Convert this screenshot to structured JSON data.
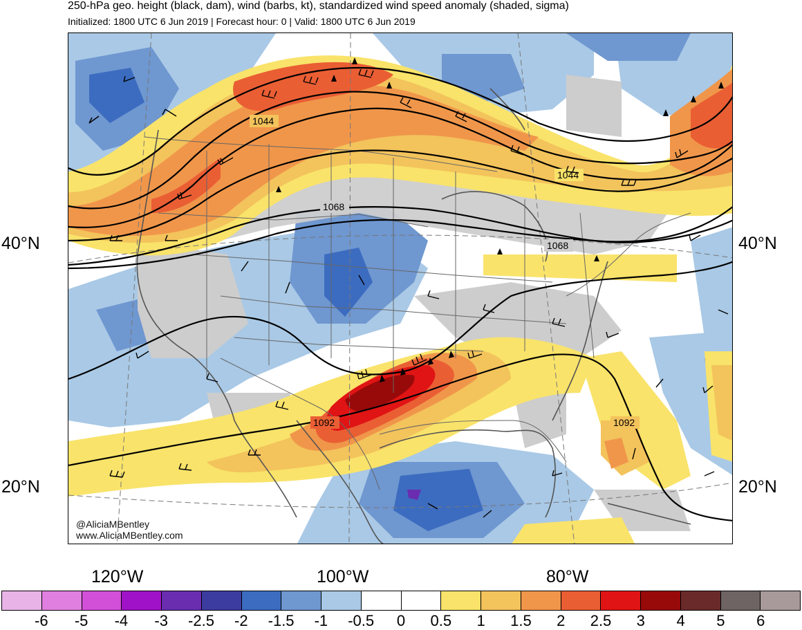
{
  "header": {
    "title": "250-hPa geo. height (black, dam), wind (barbs, kt), standardized wind speed anomaly (shaded, sigma)",
    "subtitle": "Initialized: 1800 UTC 6 Jun 2019 | Forecast hour: 0 | Valid: 1800 UTC 6 Jun 2019"
  },
  "axes": {
    "lat_labels": [
      "40°N",
      "20°N"
    ],
    "lon_labels": [
      "120°W",
      "100°W",
      "80°W"
    ]
  },
  "contours": {
    "labels": [
      "1044",
      "1044",
      "1068",
      "1068",
      "1092",
      "1092"
    ]
  },
  "credit": {
    "handle": "@AliciaMBentley",
    "website": "www.AliciaMBentley.com"
  },
  "colorbar": {
    "labels": [
      "-6",
      "-5",
      "-4",
      "-3",
      "-2.5",
      "-2",
      "-1.5",
      "-1",
      "-0.5",
      "0",
      "0.5",
      "1",
      "1.5",
      "2",
      "2.5",
      "3",
      "4",
      "5",
      "6"
    ],
    "colors": [
      "#e8b4e8",
      "#e07fe0",
      "#d24fd8",
      "#a012c8",
      "#6a2db0",
      "#3c3ca0",
      "#3c6cc0",
      "#6f97d0",
      "#a9c9e6",
      "#ffffff",
      "#ffffff",
      "#f9e36a",
      "#f3c35c",
      "#f0964a",
      "#ea5e34",
      "#e01414",
      "#980a0a",
      "#6a2a2a",
      "#6e6464",
      "#a89a9a"
    ]
  },
  "colors": {
    "land_gray": "#cdcdcd",
    "anomaly_strong_pos": "#980a0a",
    "anomaly_neg": "#3c6cc0"
  }
}
